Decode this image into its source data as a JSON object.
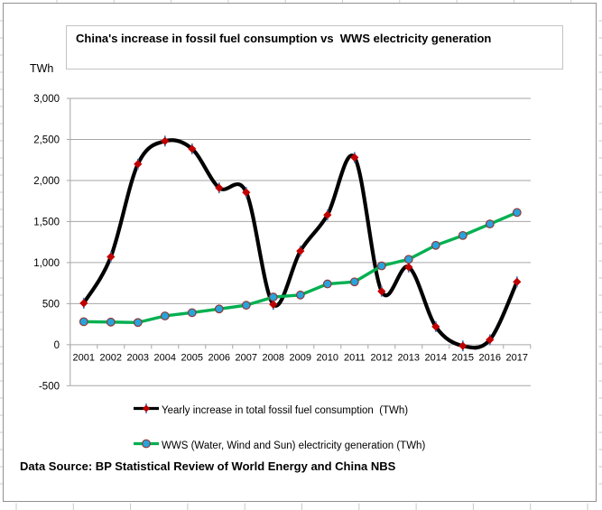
{
  "chart_data": {
    "type": "line",
    "title": "China's increase in fossil fuel consumption vs  WWS electricity generation",
    "unit_label": "TWh",
    "categories": [
      "2001",
      "2002",
      "2003",
      "2004",
      "2005",
      "2006",
      "2007",
      "2008",
      "2009",
      "2010",
      "2011",
      "2012",
      "2013",
      "2014",
      "2015",
      "2016",
      "2017"
    ],
    "series": [
      {
        "name": "Yearly increase in total fossil fuel consumption  (TWh)",
        "values": [
          505,
          1070,
          2200,
          2480,
          2385,
          1910,
          1855,
          490,
          1140,
          1580,
          2280,
          650,
          945,
          220,
          -15,
          60,
          765
        ],
        "line_color": "#000000",
        "marker": "diamond",
        "marker_color": "#C00000",
        "marker_accent_color": "#4A7EBB",
        "smooth": true
      },
      {
        "name": "WWS (Water, Wind and Sun) electricity generation (TWh)",
        "values": [
          280,
          275,
          270,
          350,
          390,
          435,
          480,
          580,
          605,
          740,
          765,
          960,
          1040,
          1210,
          1330,
          1470,
          1610
        ],
        "line_color": "#00B050",
        "marker": "circle",
        "marker_color": "#29A3DC",
        "marker_border_color": "#8E3A38",
        "smooth": false
      }
    ],
    "y_ticks": {
      "labels": [
        "3,000",
        "2,500",
        "2,000",
        "1,500",
        "1,000",
        "500",
        "0",
        "-500"
      ],
      "values": [
        3000,
        2500,
        2000,
        1500,
        1000,
        500,
        0,
        -500
      ]
    },
    "ylim": [
      -500,
      3000
    ],
    "grid": true,
    "gridline_color": "#A6A6A6",
    "legend_position": "bottom"
  },
  "source_note": "Data Source: BP Statistical Review of World Energy and China NBS",
  "spreadsheet": {
    "cell_gridline_color": "#C9C9C9"
  }
}
